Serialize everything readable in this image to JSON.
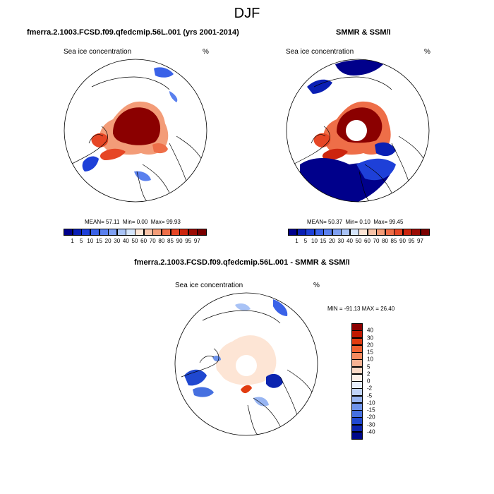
{
  "page": {
    "title": "DJF"
  },
  "panels": {
    "model": {
      "title": "fmerra.2.1003.FCSD.f09.qfedcmip.56L.001 (yrs 2001-2014)",
      "variable": "Sea ice concentration",
      "units": "%",
      "stats": {
        "mean_label": "MEAN=",
        "mean": "57.11",
        "min_label": "Min=",
        "min": "0.00",
        "max_label": "Max=",
        "max": "99.93"
      }
    },
    "obs": {
      "title": "SMMR & SSM/I",
      "variable": "Sea ice concentration",
      "units": "%",
      "stats": {
        "mean_label": "MEAN=",
        "mean": "50.37",
        "min_label": "Min=",
        "min": "0.10",
        "max_label": "Max=",
        "max": "99.45"
      }
    },
    "diff": {
      "title": "fmerra.2.1003.FCSD.f09.qfedcmip.56L.001 - SMMR & SSM/I",
      "variable": "Sea ice concentration",
      "units": "%",
      "stats": {
        "min_label": "MIN =",
        "min": "-91.13",
        "max_label": "MAX =",
        "max": "26.40"
      }
    }
  },
  "colorbars": {
    "horizontal": {
      "labels": [
        "1",
        "5",
        "10",
        "15",
        "20",
        "30",
        "40",
        "50",
        "60",
        "70",
        "80",
        "85",
        "90",
        "95",
        "97"
      ],
      "colors": [
        "#00008b",
        "#0a1fb4",
        "#1e40d8",
        "#3a62e8",
        "#5a80ee",
        "#7fa0f2",
        "#a9c3f6",
        "#d5e5fb",
        "#fde5d5",
        "#f8c3a8",
        "#f39c78",
        "#ee6e48",
        "#e64625",
        "#cc250e",
        "#9b0c04",
        "#7a0000"
      ]
    },
    "vertical": {
      "labels": [
        "40",
        "30",
        "20",
        "15",
        "10",
        "5",
        "2",
        "0",
        "-2",
        "-5",
        "-10",
        "-15",
        "-20",
        "-30",
        "-40"
      ],
      "colors": [
        "#8b0000",
        "#c01800",
        "#e23c10",
        "#f06030",
        "#f58a5e",
        "#f8b293",
        "#fbd9c6",
        "#fdf0e8",
        "#e6eefc",
        "#c0d3f8",
        "#98b5f2",
        "#6e93ea",
        "#4670e0",
        "#2048d0",
        "#0c24b0",
        "#00088a"
      ]
    }
  },
  "chart_data": {
    "type": "map",
    "projection": "north-polar-stereographic",
    "season": "DJF",
    "variable": "Sea ice concentration",
    "units": "%",
    "maps": [
      {
        "name": "model",
        "mean": 57.11,
        "min": 0.0,
        "max": 99.93,
        "levels": [
          1,
          5,
          10,
          15,
          20,
          30,
          40,
          50,
          60,
          70,
          80,
          85,
          90,
          95,
          97
        ]
      },
      {
        "name": "obs",
        "mean": 50.37,
        "min": 0.1,
        "max": 99.45,
        "levels": [
          1,
          5,
          10,
          15,
          20,
          30,
          40,
          50,
          60,
          70,
          80,
          85,
          90,
          95,
          97
        ]
      },
      {
        "name": "difference",
        "min": -91.13,
        "max": 26.4,
        "levels": [
          -40,
          -30,
          -20,
          -15,
          -10,
          -5,
          -2,
          0,
          2,
          5,
          10,
          15,
          20,
          30,
          40
        ]
      }
    ]
  }
}
